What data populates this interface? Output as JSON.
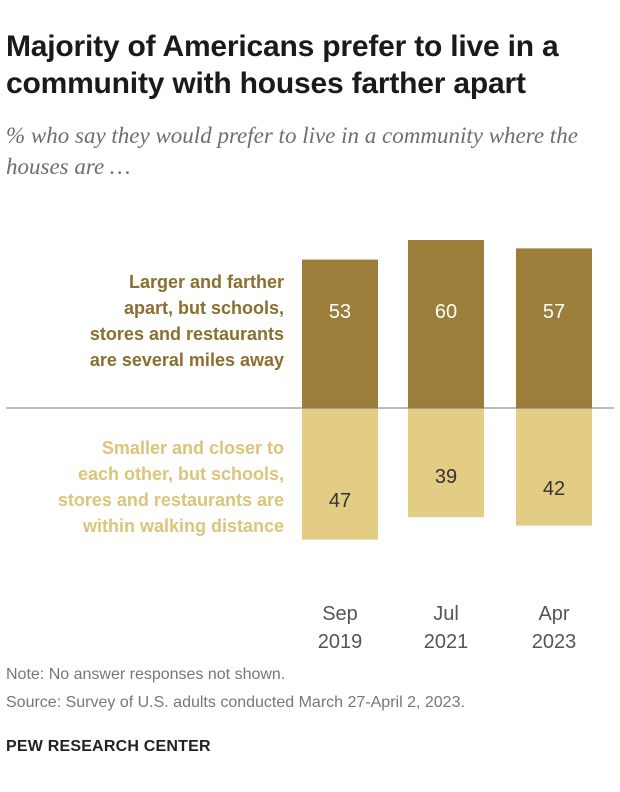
{
  "title": "Majority of Americans prefer to live in a community with houses farther apart",
  "subtitle": "% who say they would prefer to live in a community where the houses are …",
  "note": "Note: No answer responses not shown.",
  "source": "Source: Survey of U.S. adults conducted March 27-April 2, 2023.",
  "brand": "PEW RESEARCH CENTER",
  "colors": {
    "larger": "#9c7d39",
    "smaller": "#e3cc84",
    "baseline": "#777777",
    "larger_label": "#8c6e2e",
    "smaller_label": "#dcc47a"
  },
  "chart_data": {
    "type": "bar",
    "stacked": "diverging",
    "categories": [
      {
        "month": "Sep",
        "year": "2019"
      },
      {
        "month": "Jul",
        "year": "2021"
      },
      {
        "month": "Apr",
        "year": "2023"
      }
    ],
    "series": [
      {
        "name": "Larger and farther apart, but schools, stores and restaurants are several miles away",
        "name_lines": [
          "Larger and farther",
          "apart, but schools,",
          "stores and restaurants",
          "are several miles away"
        ],
        "values": [
          53,
          60,
          57
        ],
        "labels": [
          "53",
          "60",
          "57"
        ],
        "direction": "up"
      },
      {
        "name": "Smaller and closer to each other, but schools, stores and restaurants are within walking distance",
        "name_lines": [
          "Smaller and closer to",
          "each other, but schools,",
          "stores and restaurants are",
          "within walking distance"
        ],
        "values": [
          47,
          39,
          42
        ],
        "labels": [
          "47",
          "39",
          "42"
        ],
        "direction": "down"
      }
    ],
    "legend": "left-inline"
  }
}
